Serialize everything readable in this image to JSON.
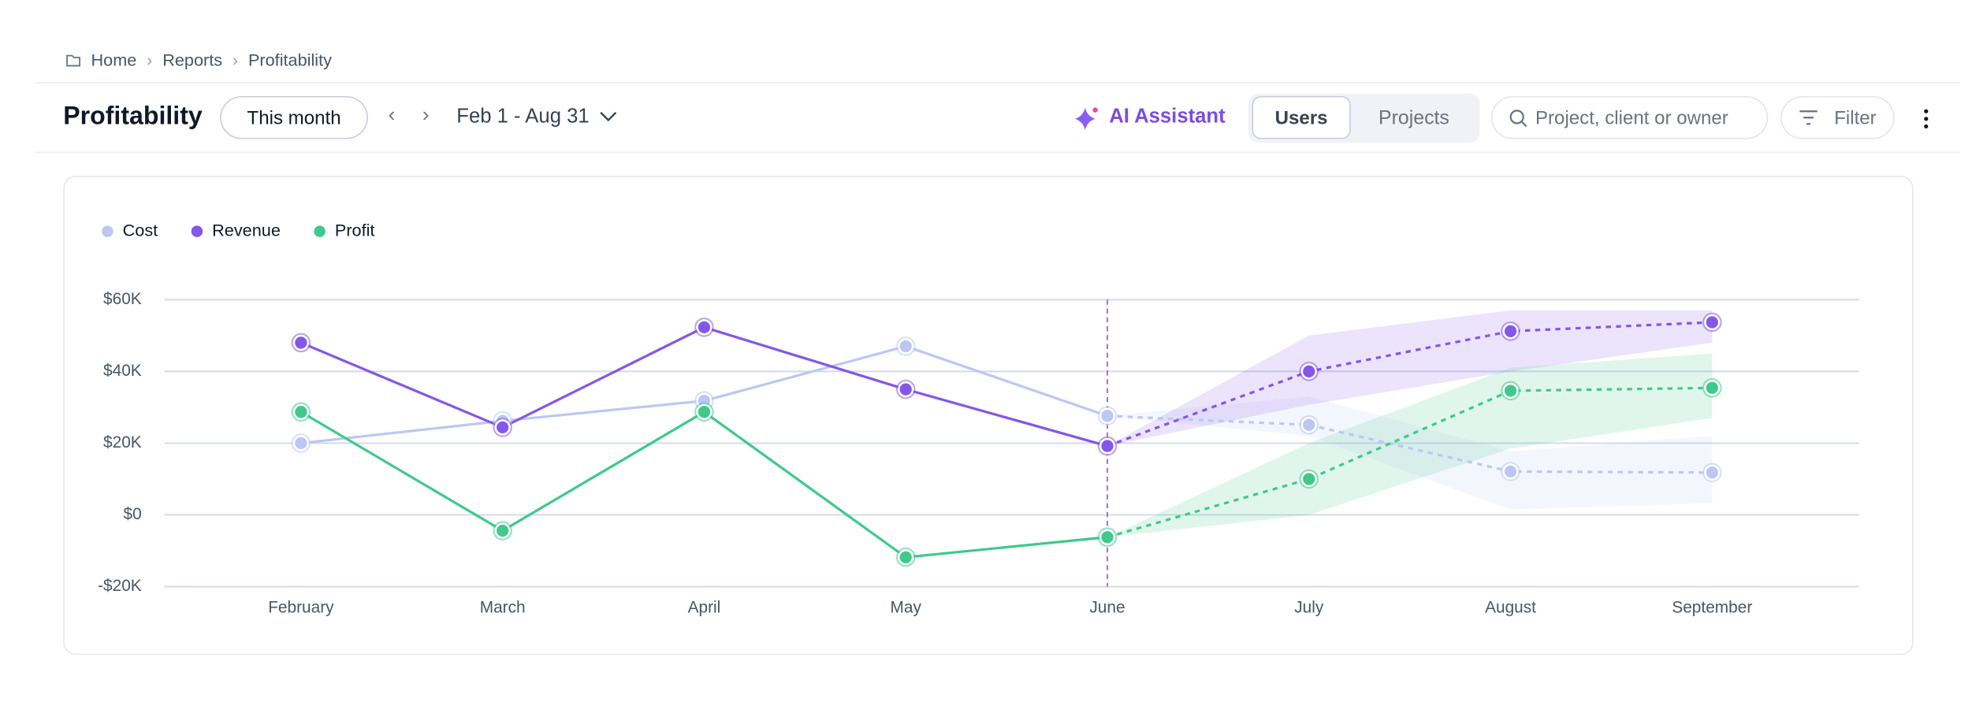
{
  "breadcrumb": [
    "Home",
    "Reports",
    "Profitability"
  ],
  "header": {
    "title": "Profitability",
    "period": "This month",
    "date_range": "Feb 1 - Aug 31",
    "ai_assistant": "AI Assistant",
    "tabs": [
      "Users",
      "Projects"
    ],
    "search_placeholder": "Project, client or owner",
    "filter": "Filter"
  },
  "chart_data": {
    "type": "line",
    "categories": [
      "February",
      "March",
      "April",
      "May",
      "June",
      "July",
      "August",
      "September"
    ],
    "forecast_start": "June",
    "series": [
      {
        "name": "Cost",
        "color": "#bcc7f4",
        "values": [
          20000,
          26200,
          31800,
          47000,
          27600,
          25100,
          12100,
          11800
        ],
        "upper": [
          null,
          null,
          null,
          null,
          null,
          33000,
          17700,
          22000
        ],
        "lower": [
          null,
          null,
          null,
          null,
          null,
          22000,
          1500,
          3300
        ]
      },
      {
        "name": "Revenue",
        "color": "#8456ea",
        "values": [
          48000,
          24400,
          52300,
          35000,
          19200,
          40000,
          51200,
          53700
        ],
        "upper": [
          null,
          null,
          null,
          null,
          null,
          50000,
          57000,
          57000
        ],
        "lower": [
          null,
          null,
          null,
          null,
          null,
          30700,
          40000,
          48000
        ]
      },
      {
        "name": "Profit",
        "color": "#3fc98b",
        "values": [
          28700,
          -4400,
          28700,
          -11800,
          -6200,
          10000,
          34600,
          35400
        ],
        "upper": [
          null,
          null,
          null,
          null,
          null,
          20000,
          41000,
          45000
        ],
        "lower": [
          null,
          null,
          null,
          null,
          null,
          0,
          18500,
          27000
        ]
      }
    ],
    "ylim": [
      -20000,
      60000
    ],
    "yticks": [
      {
        "value": -20000,
        "label": "-$20K"
      },
      {
        "value": 0,
        "label": "$0"
      },
      {
        "value": 20000,
        "label": "$20K"
      },
      {
        "value": 40000,
        "label": "$40K"
      },
      {
        "value": 60000,
        "label": "$60K"
      }
    ],
    "grid": true
  }
}
